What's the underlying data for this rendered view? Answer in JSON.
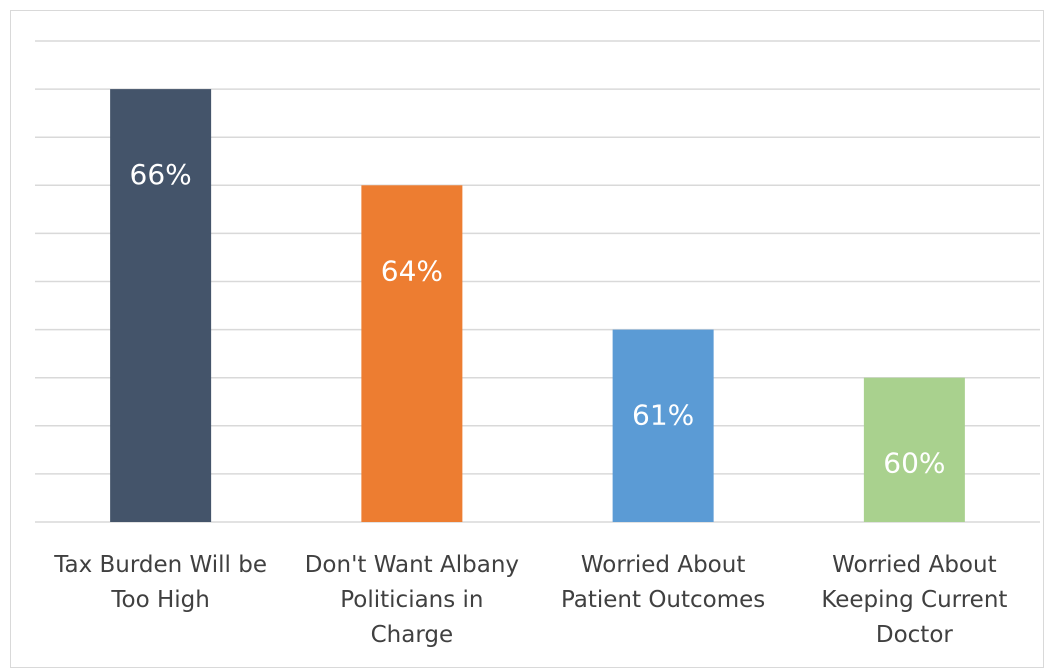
{
  "chart_data": {
    "type": "bar",
    "categories": [
      [
        "Tax Burden Will be",
        "Too High"
      ],
      [
        "Don't Want Albany",
        "Politicians in",
        "Charge"
      ],
      [
        "Worried About",
        "Patient Outcomes"
      ],
      [
        "Worried About",
        "Keeping Current",
        "Doctor"
      ]
    ],
    "values": [
      66,
      64,
      61,
      60
    ],
    "data_labels": [
      "66%",
      "64%",
      "61%",
      "60%"
    ],
    "colors": [
      "#44546a",
      "#ed7d31",
      "#5b9bd5",
      "#a9d18e"
    ],
    "ylim": [
      57,
      67
    ],
    "ytick_step": 1,
    "grid": true,
    "legend": "none",
    "gridline_color": "#d9d9d9",
    "axis_color": "#d9d9d9"
  }
}
